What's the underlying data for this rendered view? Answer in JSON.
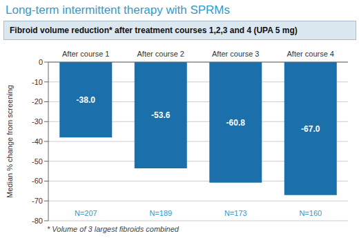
{
  "chart_data": {
    "type": "bar",
    "title": "Long-term intermittent therapy with SPRMs",
    "subtitle": "Fibroid volume reduction* after treatment courses 1,2,3 and 4 (UPA 5 mg)",
    "categories": [
      "After course 1",
      "After course 2",
      "After course 3",
      "After course 4"
    ],
    "values": [
      -38.0,
      -53.6,
      -60.8,
      -67.0
    ],
    "value_labels": [
      "-38.0",
      "-53.6",
      "-60.8",
      "-67.0"
    ],
    "data_labels": true,
    "annotations": [
      "N=207",
      "N=189",
      "N=173",
      "N=160"
    ],
    "color": "#1b6faa",
    "ylabel": "Median % change from screening",
    "ylim": [
      -80,
      0
    ],
    "yticks": [
      0,
      -10,
      -20,
      -30,
      -40,
      -50,
      -60,
      -70,
      -80
    ],
    "grid": true,
    "footnote": "* Volume of 3 largest fibroids combined"
  }
}
